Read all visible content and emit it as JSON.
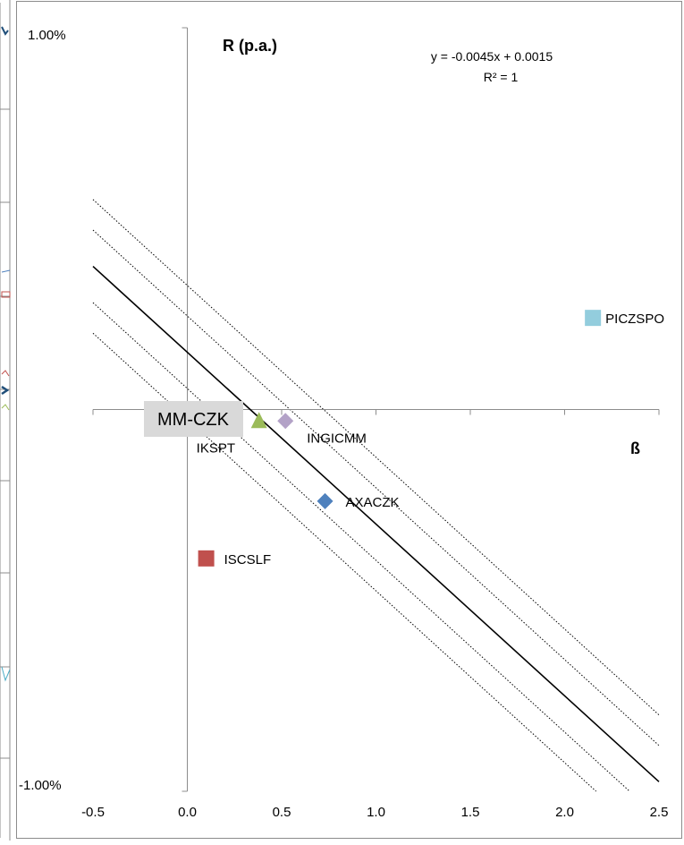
{
  "chart_data": {
    "type": "scatter",
    "xlim": [
      -0.5,
      2.5
    ],
    "ylim": [
      -1.0,
      1.0
    ],
    "x_ticks": [
      -0.5,
      0.0,
      0.5,
      1.0,
      1.5,
      2.0,
      2.5
    ],
    "x_tick_labels": [
      "-0.5",
      "0.0",
      "0.5",
      "1.0",
      "1.5",
      "2.0",
      "2.5"
    ],
    "y_tick_labels": {
      "top": "1.00%",
      "bottom": "-1.00%"
    },
    "ylabel": "R (p.a.)",
    "xlabel": "ß",
    "grid": false,
    "legend": "none",
    "trendline": {
      "equation": "y = -0.0045x + 0.0015",
      "r_squared": "R² = 1",
      "slope": -0.45,
      "intercept": 0.15,
      "band_offsets": [
        0.095,
        0.175,
        -0.095,
        -0.175
      ]
    },
    "points": [
      {
        "label": "PICZSPO",
        "x": 2.15,
        "y": 0.24,
        "marker": "square",
        "color": "#93CDDD"
      },
      {
        "label": "INGICMM",
        "x": 0.52,
        "y": -0.03,
        "marker": "diamond",
        "color": "#B3A2C7"
      },
      {
        "label": "IKSPT",
        "x": 0.38,
        "y": -0.03,
        "marker": "triangle",
        "color": "#9BBB59"
      },
      {
        "label": "AXACZK",
        "x": 0.73,
        "y": -0.24,
        "marker": "diamond",
        "color": "#4F81BD"
      },
      {
        "label": "ISCSLF",
        "x": 0.1,
        "y": -0.39,
        "marker": "square",
        "color": "#C0504D"
      }
    ],
    "market_label": "MM-CZK"
  }
}
